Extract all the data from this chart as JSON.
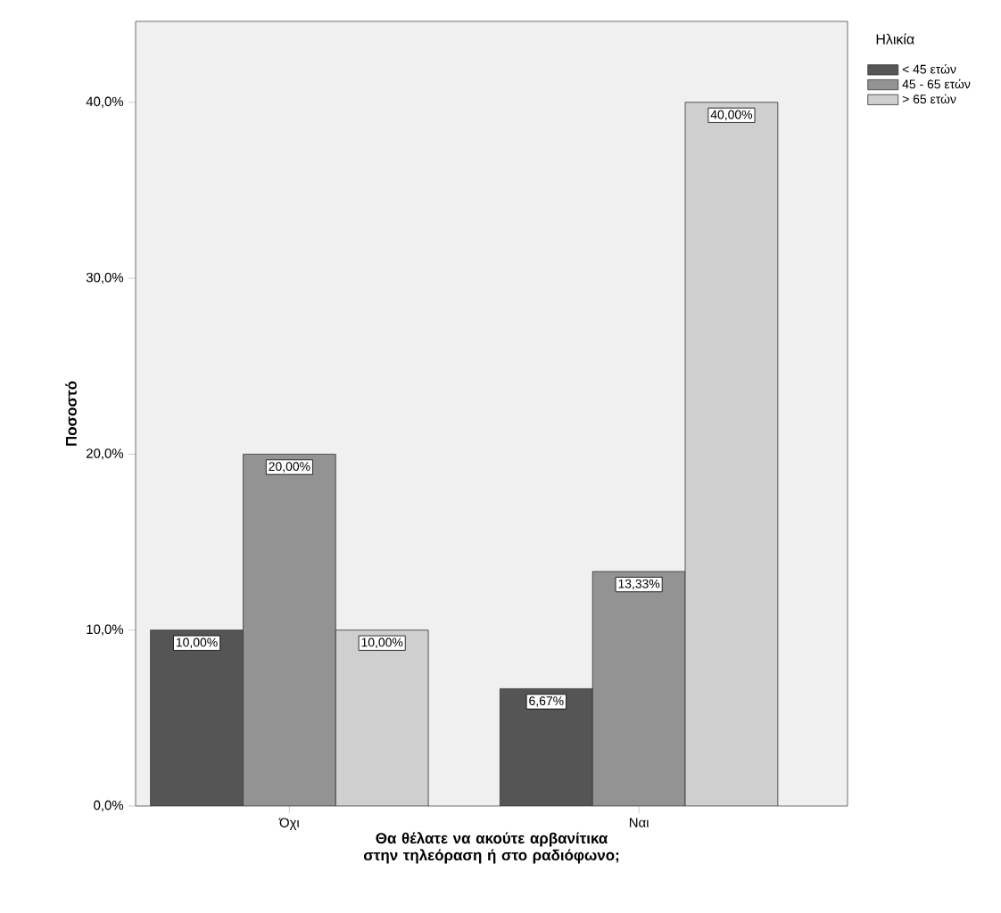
{
  "chart_data": {
    "type": "bar",
    "xlabel": "Θα θέλατε να ακούτε αρβανίτικα στην τηλεόραση ή στο ραδιόφωνο;",
    "ylabel": "Ποσοστό",
    "legend_title": "Ηλικία",
    "categories": [
      "Όχι",
      "Ναι"
    ],
    "series": [
      {
        "name": "< 45 ετών",
        "color": "#555555",
        "values": [
          10,
          6.67
        ],
        "value_labels": [
          "10,00%",
          "6,67%"
        ]
      },
      {
        "name": "45 - 65 ετών",
        "color": "#939393",
        "values": [
          20,
          13.33
        ],
        "value_labels": [
          "20,00%",
          "13,33%"
        ]
      },
      {
        "name": "> 65 ετών",
        "color": "#cfcfcf",
        "values": [
          10,
          40
        ],
        "value_labels": [
          "10,00%",
          "40,00%"
        ]
      }
    ],
    "ylim": [
      0,
      44.6
    ],
    "yticks": [
      {
        "value": 0,
        "label": "0,0%"
      },
      {
        "value": 10,
        "label": "10,0%"
      },
      {
        "value": 20,
        "label": "20,0%"
      },
      {
        "value": 30,
        "label": "30,0%"
      },
      {
        "value": 40,
        "label": "40,0%"
      }
    ],
    "grid": false,
    "legend": "top right"
  }
}
